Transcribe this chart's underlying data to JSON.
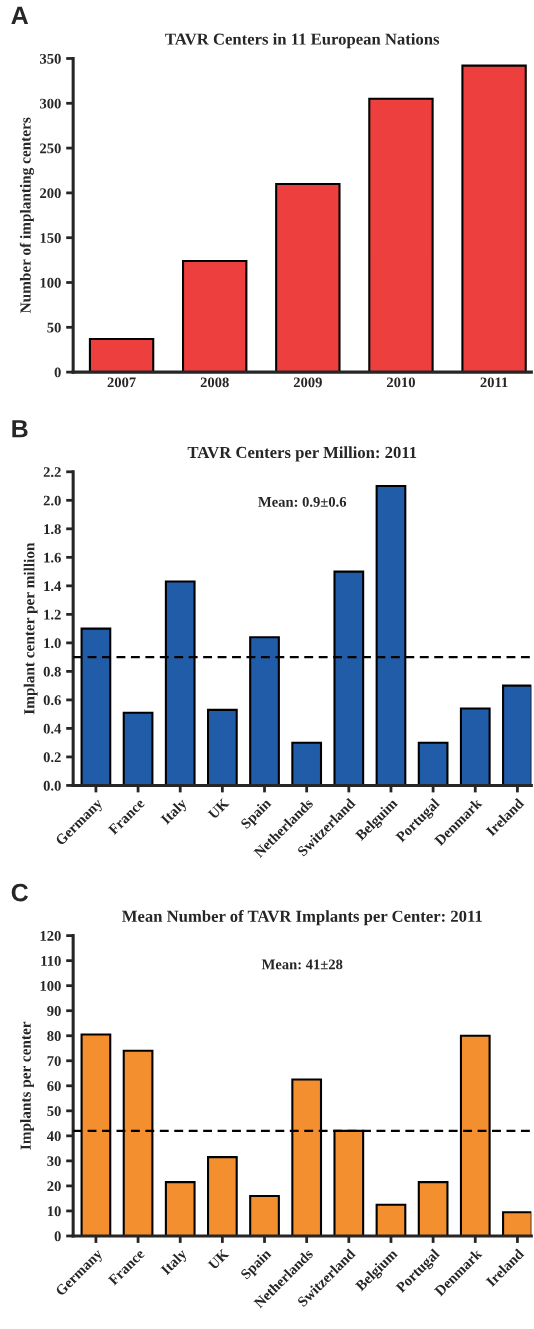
{
  "chart_data": [
    {
      "type": "bar",
      "title": "TAVR Centers in 11 European Nations",
      "ylabel": "Number of implanting centers",
      "annotations": [
        "A"
      ],
      "categories": [
        "2007",
        "2008",
        "2009",
        "2010",
        "2011"
      ],
      "values": [
        37,
        124,
        210,
        305,
        342
      ],
      "color": "#ed403e",
      "ylim": [
        0,
        350
      ],
      "yticks": [
        0,
        50,
        100,
        150,
        200,
        250,
        300,
        350
      ],
      "grid": false,
      "legend": false
    },
    {
      "type": "bar",
      "title": "TAVR Centers per Million: 2011",
      "ylabel": "Implant center per million",
      "annotations": [
        "B",
        "Mean: 0.9±0.6"
      ],
      "categories": [
        "Germany",
        "France",
        "Italy",
        "UK",
        "Spain",
        "Netherlands",
        "Switzerland",
        "Belguim",
        "Portugal",
        "Denmark",
        "Ireland"
      ],
      "values": [
        1.1,
        0.51,
        1.43,
        0.53,
        1.04,
        0.3,
        1.5,
        2.1,
        0.3,
        0.54,
        0.7
      ],
      "color": "#215ca9",
      "ylim": [
        0,
        2.2
      ],
      "yticks": [
        {
          "value": 0,
          "label": "0.0"
        },
        0.2,
        0.4,
        0.6,
        0.8,
        {
          "value": 1,
          "label": "1.0"
        },
        1.2,
        1.4,
        1.6,
        1.8,
        {
          "value": 2,
          "label": "2.0"
        },
        2.2
      ],
      "ref_lines": [
        {
          "axis": "y",
          "value": 0.9,
          "line_style": "dashed",
          "color": "#000000"
        }
      ],
      "grid": false,
      "legend": false
    },
    {
      "type": "bar",
      "title": "Mean Number of TAVR Implants per Center: 2011",
      "ylabel": "Implants per center",
      "annotations": [
        "C",
        "Mean: 41±28"
      ],
      "categories": [
        "Germany",
        "France",
        "Italy",
        "UK",
        "Spain",
        "Netherlands",
        "Switzerland",
        "Belgium",
        "Portugal",
        "Denmark",
        "Ireland"
      ],
      "values": [
        80.5,
        74,
        21.5,
        31.5,
        16,
        62.5,
        42,
        12.5,
        21.5,
        80,
        9.5
      ],
      "color": "#f38f2e",
      "ylim": [
        0,
        120
      ],
      "yticks": [
        0,
        10,
        20,
        30,
        40,
        50,
        60,
        70,
        80,
        90,
        100,
        110,
        120
      ],
      "ref_lines": [
        {
          "axis": "y",
          "value": 42,
          "line_style": "dashed",
          "color": "#000000"
        }
      ],
      "grid": false,
      "legend": false
    }
  ]
}
